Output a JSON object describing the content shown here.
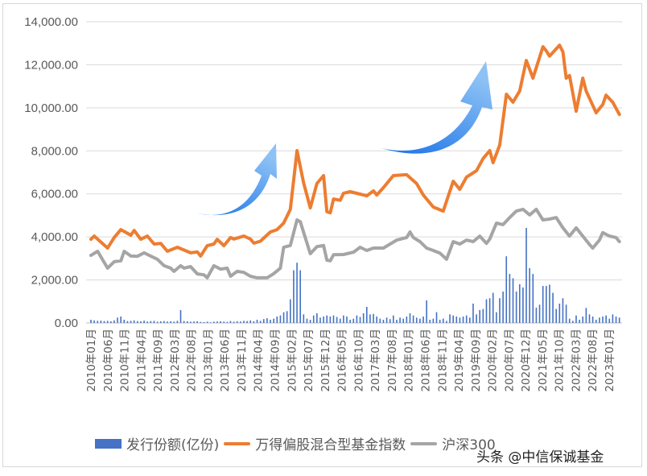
{
  "chart_data": {
    "type": "bar+line",
    "title": "",
    "ylim": [
      0,
      14000
    ],
    "y_ticks": [
      "0.00",
      "2,000.00",
      "4,000.00",
      "6,000.00",
      "8,000.00",
      "10,000.00",
      "12,000.00",
      "14,000.00"
    ],
    "grid": true,
    "legend_position": "bottom",
    "x_ticks": [
      "2010年01月",
      "2010年06月",
      "2010年11月",
      "2011年04月",
      "2011年09月",
      "2012年03月",
      "2012年08月",
      "2013年01月",
      "2013年06月",
      "2013年11月",
      "2014年04月",
      "2014年09月",
      "2015年02月",
      "2015年07月",
      "2015年12月",
      "2016年05月",
      "2016年10月",
      "2017年03月",
      "2017年08月",
      "2018年01月",
      "2018年06月",
      "2018年11月",
      "2019年04月",
      "2019年09月",
      "2020年02月",
      "2020年07月",
      "2020年12月",
      "2021年05月",
      "2021年10月",
      "2022年03月",
      "2022年08月",
      "2023年01月"
    ],
    "bar_series": {
      "name": "发行份额(亿份)",
      "color": "#4472c4",
      "start": "2010-01",
      "values": [
        150,
        120,
        100,
        110,
        90,
        100,
        80,
        120,
        250,
        300,
        150,
        90,
        100,
        120,
        90,
        80,
        110,
        70,
        90,
        100,
        60,
        80,
        90,
        70,
        80,
        60,
        100,
        600,
        90,
        80,
        60,
        70,
        80,
        50,
        40,
        60,
        30,
        60,
        70,
        80,
        60,
        50,
        90,
        60,
        80,
        70,
        100,
        90,
        120,
        80,
        150,
        100,
        180,
        220,
        150,
        200,
        300,
        350,
        500,
        550,
        1100,
        2450,
        2800,
        2450,
        400,
        200,
        150,
        350,
        450,
        250,
        300,
        350,
        300,
        350,
        280,
        200,
        350,
        300,
        150,
        200,
        350,
        280,
        450,
        750,
        400,
        420,
        300,
        200,
        150,
        250,
        180,
        350,
        150,
        250,
        200,
        300,
        450,
        350,
        250,
        200,
        300,
        1050,
        150,
        200,
        500,
        150,
        200,
        100,
        400,
        350,
        300,
        250,
        300,
        350,
        250,
        900,
        400,
        600,
        650,
        1100,
        1150,
        1400,
        500,
        1150,
        1460,
        3100,
        2280,
        2080,
        1460,
        1800,
        1650,
        4420,
        2550,
        2280,
        710,
        850,
        1720,
        1720,
        1780,
        1400,
        650,
        900,
        1150,
        850,
        200,
        100,
        350,
        150,
        300,
        700,
        400,
        300,
        150,
        250,
        300,
        350,
        200,
        400,
        300,
        250
      ]
    },
    "line_series": [
      {
        "name": "万得偏股混合型基金指数",
        "color": "#ed7d31",
        "points": [
          [
            "2010-01",
            3890
          ],
          [
            "2010-02",
            4040
          ],
          [
            "2010-06",
            3480
          ],
          [
            "2010-08",
            3970
          ],
          [
            "2010-10",
            4340
          ],
          [
            "2011-01",
            4080
          ],
          [
            "2011-02",
            4300
          ],
          [
            "2011-04",
            3890
          ],
          [
            "2011-06",
            4040
          ],
          [
            "2011-08",
            3670
          ],
          [
            "2011-10",
            3700
          ],
          [
            "2011-12",
            3330
          ],
          [
            "2012-03",
            3520
          ],
          [
            "2012-07",
            3260
          ],
          [
            "2012-09",
            3300
          ],
          [
            "2012-10",
            3110
          ],
          [
            "2012-12",
            3590
          ],
          [
            "2013-02",
            3670
          ],
          [
            "2013-03",
            3890
          ],
          [
            "2013-05",
            3590
          ],
          [
            "2013-07",
            3970
          ],
          [
            "2013-08",
            3900
          ],
          [
            "2013-11",
            4040
          ],
          [
            "2014-01",
            3900
          ],
          [
            "2014-02",
            3710
          ],
          [
            "2014-04",
            3800
          ],
          [
            "2014-07",
            4230
          ],
          [
            "2014-09",
            4340
          ],
          [
            "2014-11",
            4640
          ],
          [
            "2015-01",
            5280
          ],
          [
            "2015-03",
            8010
          ],
          [
            "2015-05",
            6510
          ],
          [
            "2015-07",
            5350
          ],
          [
            "2015-09",
            6480
          ],
          [
            "2015-11",
            6850
          ],
          [
            "2015-12",
            5170
          ],
          [
            "2016-01",
            5120
          ],
          [
            "2016-02",
            5760
          ],
          [
            "2016-04",
            5700
          ],
          [
            "2016-05",
            6030
          ],
          [
            "2016-07",
            6100
          ],
          [
            "2016-12",
            5910
          ],
          [
            "2017-02",
            6140
          ],
          [
            "2017-03",
            5950
          ],
          [
            "2017-05",
            6290
          ],
          [
            "2017-08",
            6850
          ],
          [
            "2017-12",
            6890
          ],
          [
            "2018-03",
            6480
          ],
          [
            "2018-05",
            5950
          ],
          [
            "2018-08",
            5390
          ],
          [
            "2018-11",
            5200
          ],
          [
            "2019-02",
            6590
          ],
          [
            "2019-04",
            6210
          ],
          [
            "2019-06",
            6780
          ],
          [
            "2019-09",
            7080
          ],
          [
            "2019-11",
            7640
          ],
          [
            "2020-01",
            8010
          ],
          [
            "2020-02",
            7450
          ],
          [
            "2020-04",
            8270
          ],
          [
            "2020-06",
            10630
          ],
          [
            "2020-08",
            10260
          ],
          [
            "2020-10",
            10780
          ],
          [
            "2020-12",
            12200
          ],
          [
            "2021-02",
            11380
          ],
          [
            "2021-05",
            12840
          ],
          [
            "2021-06",
            12650
          ],
          [
            "2021-07",
            12400
          ],
          [
            "2021-10",
            12910
          ],
          [
            "2021-11",
            12600
          ],
          [
            "2021-12",
            11380
          ],
          [
            "2022-01",
            11500
          ],
          [
            "2022-03",
            9840
          ],
          [
            "2022-05",
            11380
          ],
          [
            "2022-06",
            10780
          ],
          [
            "2022-09",
            9770
          ],
          [
            "2022-11",
            10150
          ],
          [
            "2022-12",
            10590
          ],
          [
            "2023-02",
            10260
          ],
          [
            "2023-04",
            9690
          ]
        ]
      },
      {
        "name": "沪深300",
        "color": "#a5a5a5",
        "points": [
          [
            "2010-01",
            3140
          ],
          [
            "2010-03",
            3330
          ],
          [
            "2010-06",
            2550
          ],
          [
            "2010-08",
            2850
          ],
          [
            "2010-10",
            2890
          ],
          [
            "2010-11",
            3330
          ],
          [
            "2011-01",
            3110
          ],
          [
            "2011-03",
            3100
          ],
          [
            "2011-05",
            3260
          ],
          [
            "2011-07",
            3110
          ],
          [
            "2011-09",
            2960
          ],
          [
            "2011-11",
            2660
          ],
          [
            "2012-01",
            2550
          ],
          [
            "2012-02",
            2400
          ],
          [
            "2012-04",
            2660
          ],
          [
            "2012-05",
            2550
          ],
          [
            "2012-07",
            2620
          ],
          [
            "2012-09",
            2280
          ],
          [
            "2012-11",
            2240
          ],
          [
            "2012-12",
            2100
          ],
          [
            "2013-02",
            2660
          ],
          [
            "2013-04",
            2500
          ],
          [
            "2013-06",
            2550
          ],
          [
            "2013-07",
            2170
          ],
          [
            "2013-09",
            2400
          ],
          [
            "2013-11",
            2350
          ],
          [
            "2014-01",
            2170
          ],
          [
            "2014-03",
            2100
          ],
          [
            "2014-06",
            2100
          ],
          [
            "2014-08",
            2290
          ],
          [
            "2014-10",
            2550
          ],
          [
            "2014-11",
            3520
          ],
          [
            "2015-01",
            3600
          ],
          [
            "2015-03",
            4790
          ],
          [
            "2015-04",
            4700
          ],
          [
            "2015-07",
            3220
          ],
          [
            "2015-09",
            3550
          ],
          [
            "2015-11",
            3600
          ],
          [
            "2015-12",
            2920
          ],
          [
            "2016-01",
            2890
          ],
          [
            "2016-02",
            3170
          ],
          [
            "2016-05",
            3180
          ],
          [
            "2016-08",
            3290
          ],
          [
            "2016-10",
            3520
          ],
          [
            "2016-12",
            3370
          ],
          [
            "2017-02",
            3480
          ],
          [
            "2017-05",
            3480
          ],
          [
            "2017-07",
            3670
          ],
          [
            "2017-09",
            3850
          ],
          [
            "2017-12",
            3970
          ],
          [
            "2018-01",
            4230
          ],
          [
            "2018-02",
            3970
          ],
          [
            "2018-04",
            3780
          ],
          [
            "2018-06",
            3480
          ],
          [
            "2018-08",
            3370
          ],
          [
            "2018-10",
            3250
          ],
          [
            "2018-12",
            2960
          ],
          [
            "2019-02",
            3780
          ],
          [
            "2019-04",
            3670
          ],
          [
            "2019-06",
            3850
          ],
          [
            "2019-08",
            3780
          ],
          [
            "2019-10",
            4040
          ],
          [
            "2019-12",
            3700
          ],
          [
            "2020-01",
            3900
          ],
          [
            "2020-03",
            4640
          ],
          [
            "2020-05",
            4570
          ],
          [
            "2020-07",
            4900
          ],
          [
            "2020-09",
            5200
          ],
          [
            "2020-11",
            5280
          ],
          [
            "2021-01",
            5020
          ],
          [
            "2021-03",
            5280
          ],
          [
            "2021-05",
            4790
          ],
          [
            "2021-07",
            4830
          ],
          [
            "2021-09",
            4900
          ],
          [
            "2021-11",
            4420
          ],
          [
            "2022-01",
            4040
          ],
          [
            "2022-03",
            4420
          ],
          [
            "2022-05",
            4040
          ],
          [
            "2022-07",
            3650
          ],
          [
            "2022-08",
            3480
          ],
          [
            "2022-10",
            3850
          ],
          [
            "2022-11",
            4200
          ],
          [
            "2023-01",
            4040
          ],
          [
            "2023-03",
            3970
          ],
          [
            "2023-04",
            3780
          ]
        ]
      }
    ]
  },
  "legend": {
    "bar_label": "发行份额(亿份)",
    "orange_label": "万得偏股混合型基金指数",
    "gray_label": "沪深300"
  },
  "watermark": "头条 @中信保诚基金",
  "decorations": {
    "arrow_icon": "curved-up-arrow",
    "arrow_color": "#2f7fe6"
  }
}
